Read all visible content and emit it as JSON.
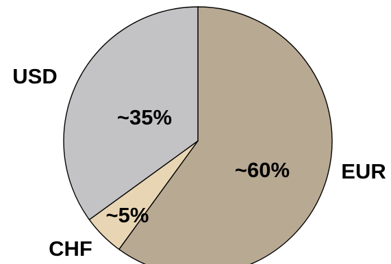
{
  "chart_data": {
    "type": "pie",
    "slices": [
      {
        "category": "EUR",
        "value": 60,
        "label": "~60%",
        "color": "#b8a993"
      },
      {
        "category": "CHF",
        "value": 5,
        "label": "~5%",
        "color": "#e8d5b4"
      },
      {
        "category": "USD",
        "value": 35,
        "label": "~35%",
        "color": "#c3c3c5"
      }
    ],
    "start": "12 o'clock",
    "direction": "clockwise",
    "edge_color": "#000000"
  }
}
